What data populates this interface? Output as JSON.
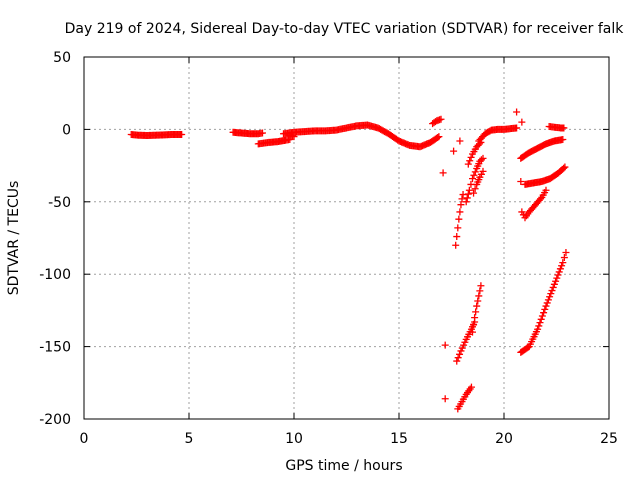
{
  "chart_data": {
    "type": "scatter",
    "title": "Day 219 of 2024, Sidereal Day-to-day VTEC variation (SDTVAR) for receiver falk",
    "xlabel": "GPS time / hours",
    "ylabel": "SDTVAR / TECUs",
    "xlim": [
      0,
      25
    ],
    "ylim": [
      -200,
      50
    ],
    "xticks": [
      0,
      5,
      10,
      15,
      20,
      25
    ],
    "yticks": [
      -200,
      -150,
      -100,
      -50,
      0,
      50
    ],
    "xtick_labels": [
      "0",
      "5",
      "10",
      "15",
      "20",
      "25"
    ],
    "ytick_labels": [
      "-200",
      "-150",
      "-100",
      "-50",
      "0",
      "50"
    ],
    "grid": true,
    "marker": "plus",
    "marker_color": "#ff0000",
    "segments": [
      {
        "x": [
          2.25,
          2.6,
          3.0,
          3.4,
          3.8,
          4.2,
          4.65
        ],
        "y": [
          -3.5,
          -4,
          -4.2,
          -4,
          -3.8,
          -3.5,
          -3.5
        ]
      },
      {
        "x": [
          7.1,
          7.5,
          7.9,
          8.3,
          8.5
        ],
        "y": [
          -2,
          -2.5,
          -3,
          -3,
          -2.5
        ]
      },
      {
        "x": [
          8.3,
          8.8,
          9.2,
          9.6,
          9.8
        ],
        "y": [
          -10,
          -9,
          -8.5,
          -7.5,
          -7
        ]
      },
      {
        "x": [
          9.5,
          10.0,
          10.5,
          11.0,
          11.5,
          12.0,
          12.5,
          13.0,
          13.5,
          14.0,
          14.5,
          15.0,
          15.5,
          16.0,
          16.5,
          16.9
        ],
        "y": [
          -3,
          -2,
          -1.5,
          -1,
          -1,
          -0.5,
          1,
          2.5,
          3,
          1,
          -3,
          -8,
          -11,
          -12,
          -9,
          -5
        ]
      },
      {
        "x": [
          9.8,
          10.0
        ],
        "y": [
          -4,
          -5
        ]
      },
      {
        "x": [
          16.6,
          16.8,
          17.0
        ],
        "y": [
          4,
          6,
          7
        ]
      },
      {
        "x": [
          17.1
        ],
        "y": [
          -30
        ]
      },
      {
        "x": [
          17.2
        ],
        "y": [
          -149
        ]
      },
      {
        "x": [
          17.2
        ],
        "y": [
          -186
        ]
      },
      {
        "x": [
          17.7,
          17.75,
          17.8,
          17.85,
          17.9,
          17.95,
          18.0,
          18.05
        ],
        "y": [
          -80,
          -74,
          -68,
          -62,
          -57,
          -52,
          -48,
          -45
        ]
      },
      {
        "x": [
          17.8,
          18.0,
          18.2,
          18.45
        ],
        "y": [
          -193,
          -188,
          -183,
          -178
        ]
      },
      {
        "x": [
          17.75,
          17.95,
          18.2,
          18.45,
          18.6
        ],
        "y": [
          -160,
          -153,
          -145,
          -138,
          -133
        ]
      },
      {
        "x": [
          17.6
        ],
        "y": [
          -15
        ]
      },
      {
        "x": [
          17.9
        ],
        "y": [
          -8
        ]
      },
      {
        "x": [
          18.2,
          18.35,
          18.5,
          18.7,
          18.85,
          19.0
        ],
        "y": [
          -50,
          -42,
          -34,
          -27,
          -22,
          -20
        ]
      },
      {
        "x": [
          18.3,
          18.5,
          18.7,
          18.9
        ],
        "y": [
          -24,
          -17,
          -12,
          -9
        ]
      },
      {
        "x": [
          18.5,
          18.6,
          18.7,
          18.8,
          18.9
        ],
        "y": [
          -140,
          -130,
          -122,
          -115,
          -108
        ]
      },
      {
        "x": [
          18.55,
          18.7,
          18.85,
          19.0
        ],
        "y": [
          -44,
          -38,
          -33,
          -29
        ]
      },
      {
        "x": [
          18.8,
          19.1,
          19.4,
          19.7,
          20.0,
          20.3,
          20.6
        ],
        "y": [
          -8,
          -3,
          -0.5,
          0,
          0,
          0.5,
          1
        ]
      },
      {
        "x": [
          20.6
        ],
        "y": [
          12
        ]
      },
      {
        "x": [
          20.85
        ],
        "y": [
          5
        ]
      },
      {
        "x": [
          20.8,
          21.2,
          21.6,
          22.0,
          22.4,
          22.8
        ],
        "y": [
          -20,
          -16,
          -13,
          -10,
          -8,
          -7
        ]
      },
      {
        "x": [
          20.8
        ],
        "y": [
          -36
        ]
      },
      {
        "x": [
          21.0,
          21.4,
          21.8,
          22.2,
          22.6,
          22.9
        ],
        "y": [
          -38,
          -37,
          -36,
          -34,
          -30,
          -26
        ]
      },
      {
        "x": [
          20.85,
          21.0,
          21.2,
          21.5,
          21.8,
          22.0
        ],
        "y": [
          -57,
          -61,
          -57,
          -52,
          -47,
          -42
        ]
      },
      {
        "x": [
          20.8,
          21.2,
          21.6,
          22.0,
          22.4,
          22.8,
          22.95
        ],
        "y": [
          -154,
          -150,
          -138,
          -122,
          -107,
          -92,
          -85
        ]
      },
      {
        "x": [
          22.15,
          22.4,
          22.7,
          22.85
        ],
        "y": [
          2,
          1.5,
          1,
          1
        ]
      }
    ]
  }
}
